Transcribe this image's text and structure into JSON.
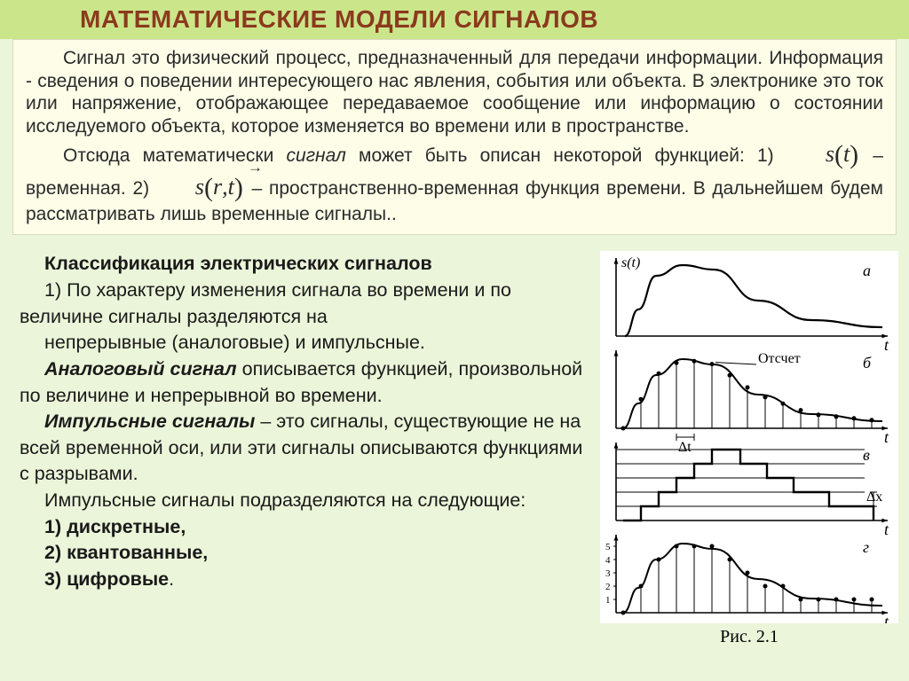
{
  "title": "МАТЕМАТИЧЕСКИЕ МОДЕЛИ СИГНАЛОВ",
  "colors": {
    "page_bg": "#ebf5d9",
    "title_bg": "#cbe68a",
    "title_fg": "#8b3a1e",
    "textbox_bg": "#fdfde8",
    "textbox_border": "#d8d8c0",
    "body_text": "#1a1a1a",
    "figure_bg": "#ffffff",
    "figure_line": "#000000"
  },
  "intro": {
    "p1": "Сигнал это физический процесс, предназначенный для передачи информации. Информация - сведения о поведении интересующего нас явления, события или объекта.  В электронике это ток или напряжение, отображающее передаваемое сообщение или информацию о состоянии исследуемого объекта, которое изменяется во времени или в пространстве.",
    "p2_prefix": "Отсюда математически ",
    "p2_signal": "сигнал",
    "p2_mid": " может быть описан некоторой функцией: 1) ",
    "formula1_inner": "t",
    "p2_after_f1": " – временная.   2)  ",
    "formula2_inner_r": "r",
    "formula2_inner_t": "t",
    "p2_after_f2": "  – пространственно-временная функция времени. В дальнейшем будем рассматривать лишь временные сигналы.."
  },
  "lower": {
    "heading": "Классификация электрических сигналов",
    "l1": "1) По характеру изменения сигнала во времени и по величине сигналы разделяются на",
    "l2": "непрерывные (аналоговые) и импульсные.",
    "l3a": "Аналоговый сигнал",
    "l3b": " описывается функцией, произвольной по величине и непрерывной во времени.",
    "l4a": "Импульсные сигналы",
    "l4b": " – это сигналы, существующие не на всей временной оси, или эти сигналы описываются функциями с разрывами.",
    "l5": "Импульсные сигналы подразделяются на следующие:",
    "l6": "1) дискретные,",
    "l7": "2) квантованные,",
    "l8": "3) цифровые"
  },
  "figure": {
    "type": "infographic",
    "caption": "Рис. 2.1",
    "font": {
      "axis_size": 18,
      "label_size": 16,
      "family": "Times New Roman"
    },
    "line_color": "#000000",
    "line_width": 1.6,
    "panels": [
      {
        "id": "a",
        "label": "а",
        "y_label": "s(t)",
        "x_label": "t",
        "curve": [
          [
            10,
            90
          ],
          [
            25,
            60
          ],
          [
            45,
            22
          ],
          [
            75,
            10
          ],
          [
            110,
            15
          ],
          [
            160,
            50
          ],
          [
            220,
            72
          ],
          [
            300,
            80
          ]
        ]
      },
      {
        "id": "b",
        "label": "б",
        "x_label": "t",
        "curve": [
          [
            8,
            90
          ],
          [
            25,
            62
          ],
          [
            45,
            30
          ],
          [
            75,
            12
          ],
          [
            110,
            18
          ],
          [
            160,
            52
          ],
          [
            220,
            74
          ],
          [
            300,
            82
          ]
        ],
        "samples_x": [
          8,
          28,
          48,
          68,
          88,
          108,
          128,
          148,
          168,
          188,
          208,
          228,
          248,
          268,
          288
        ],
        "dt_label": "Δt",
        "annotation": "Отсчет",
        "dt_bracket": [
          68,
          88
        ]
      },
      {
        "id": "c",
        "label": "в",
        "x_label": "t",
        "levels": [
          90,
          74,
          58,
          42,
          26,
          10
        ],
        "steps": [
          [
            8,
            90
          ],
          [
            28,
            74
          ],
          [
            48,
            58
          ],
          [
            68,
            42
          ],
          [
            88,
            26
          ],
          [
            108,
            10
          ],
          [
            140,
            26
          ],
          [
            170,
            42
          ],
          [
            200,
            58
          ],
          [
            240,
            74
          ],
          [
            290,
            90
          ]
        ],
        "dx_label": "Δx"
      },
      {
        "id": "d",
        "label": "г",
        "x_label": "t",
        "y_ticks": [
          "1",
          "2",
          "3",
          "4",
          "5"
        ],
        "curve": [
          [
            8,
            90
          ],
          [
            25,
            62
          ],
          [
            45,
            30
          ],
          [
            75,
            12
          ],
          [
            110,
            18
          ],
          [
            160,
            52
          ],
          [
            220,
            74
          ],
          [
            300,
            82
          ]
        ],
        "samples_x": [
          8,
          28,
          48,
          68,
          88,
          108,
          128,
          148,
          168,
          188,
          208,
          228,
          248,
          268,
          288
        ]
      }
    ]
  }
}
